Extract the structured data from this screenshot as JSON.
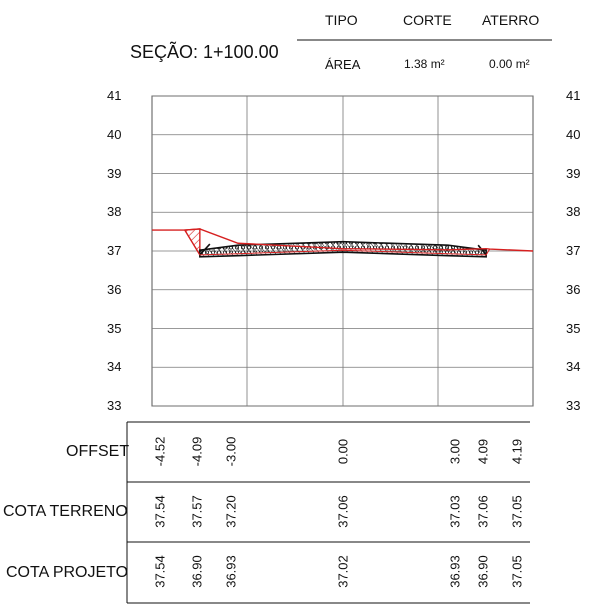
{
  "header": {
    "col_tipo": "TIPO",
    "col_corte": "CORTE",
    "col_aterro": "ATERRO",
    "row_area": "ÁREA",
    "area_corte": "1.38 m²",
    "area_aterro": "0.00 m²"
  },
  "section": {
    "title": "SEÇÃO: 1+100.00"
  },
  "axis": {
    "y_ticks": [
      "41",
      "40",
      "39",
      "38",
      "37",
      "36",
      "35",
      "34",
      "33"
    ]
  },
  "table": {
    "rows": [
      {
        "title": "OFFSET",
        "values": [
          "-4.52",
          "-4.09",
          "-3.00",
          "0.00",
          "3.00",
          "4.09",
          "4.19"
        ]
      },
      {
        "title": "COTA TERRENO",
        "values": [
          "37.54",
          "37.57",
          "37.20",
          "37.06",
          "37.03",
          "37.06",
          "37.05"
        ]
      },
      {
        "title": "COTA PROJETO",
        "values": [
          "37.54",
          "36.90",
          "36.93",
          "37.02",
          "36.93",
          "36.90",
          "37.05"
        ]
      }
    ]
  },
  "chart_data": {
    "type": "line",
    "title": "SEÇÃO: 1+100.00",
    "ylim": [
      33,
      41
    ],
    "xlim": [
      -5.0,
      5.0
    ],
    "series": [
      {
        "x": [
          -4.52,
          -4.09,
          -3.0,
          0.0,
          3.0,
          4.09,
          4.19
        ],
        "y": [
          37.54,
          37.57,
          37.2,
          37.06,
          37.03,
          37.06,
          37.05
        ]
      },
      {
        "x": [
          -4.52,
          -4.09,
          -3.0,
          0.0,
          3.0,
          4.09,
          4.19
        ],
        "y": [
          37.54,
          36.9,
          36.93,
          37.02,
          36.93,
          36.9,
          37.05
        ]
      }
    ]
  },
  "colors": {
    "terrain": "#d62020",
    "pavement": "#111111",
    "grid": "#777777"
  }
}
